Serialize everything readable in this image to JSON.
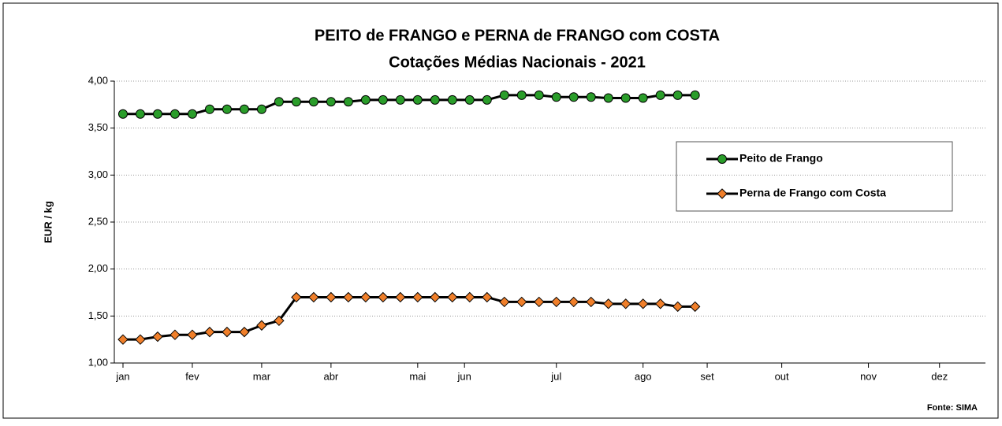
{
  "chart_data": {
    "type": "line",
    "title": "PEITO de FRANGO e PERNA de FRANGO com COSTA",
    "subtitle": "Cotações Médias Nacionais - 2021",
    "y_label": "EUR / kg",
    "source": "Fonte: SIMA",
    "x": [
      1,
      2,
      3,
      4,
      5,
      6,
      7,
      8,
      9,
      10,
      11,
      12,
      13,
      14,
      15,
      16,
      17,
      18,
      19,
      20,
      21,
      22,
      23,
      24,
      25,
      26,
      27,
      28,
      29,
      30,
      31,
      32,
      33,
      34
    ],
    "xlim": [
      0.5,
      50.75
    ],
    "xticks": [
      {
        "value": 1,
        "label": "jan"
      },
      {
        "value": 5,
        "label": "fev"
      },
      {
        "value": 9,
        "label": "mar"
      },
      {
        "value": 13,
        "label": "abr"
      },
      {
        "value": 18,
        "label": "mai"
      },
      {
        "value": 20.7,
        "label": "jun"
      },
      {
        "value": 26,
        "label": "jul"
      },
      {
        "value": 31,
        "label": "ago"
      },
      {
        "value": 34.7,
        "label": "set"
      },
      {
        "value": 39,
        "label": "out"
      },
      {
        "value": 44,
        "label": "nov"
      },
      {
        "value": 48.1,
        "label": "dez"
      }
    ],
    "ylim": [
      1,
      4
    ],
    "yticks": [
      {
        "value": 1,
        "label": "1,00"
      },
      {
        "value": 1.5,
        "label": "1,50"
      },
      {
        "value": 2,
        "label": "2,00"
      },
      {
        "value": 2.5,
        "label": "2,50"
      },
      {
        "value": 3,
        "label": "3,00"
      },
      {
        "value": 3.5,
        "label": "3,50"
      },
      {
        "value": 4,
        "label": "4,00"
      }
    ],
    "grid": true,
    "legend": "right",
    "series": [
      {
        "name": "Peito de Frango",
        "color": "#2a9d2a",
        "marker": "circle",
        "values": [
          3.65,
          3.65,
          3.65,
          3.65,
          3.65,
          3.7,
          3.7,
          3.7,
          3.7,
          3.78,
          3.78,
          3.78,
          3.78,
          3.78,
          3.8,
          3.8,
          3.8,
          3.8,
          3.8,
          3.8,
          3.8,
          3.8,
          3.85,
          3.85,
          3.85,
          3.83,
          3.83,
          3.83,
          3.82,
          3.82,
          3.82,
          3.85,
          3.85,
          3.85
        ]
      },
      {
        "name": "Perna de Frango com Costa",
        "color": "#f07f2a",
        "marker": "diamond",
        "values": [
          1.25,
          1.25,
          1.28,
          1.3,
          1.3,
          1.33,
          1.33,
          1.33,
          1.4,
          1.45,
          1.7,
          1.7,
          1.7,
          1.7,
          1.7,
          1.7,
          1.7,
          1.7,
          1.7,
          1.7,
          1.7,
          1.7,
          1.65,
          1.65,
          1.65,
          1.65,
          1.65,
          1.65,
          1.63,
          1.63,
          1.63,
          1.63,
          1.6,
          1.6
        ]
      }
    ]
  }
}
